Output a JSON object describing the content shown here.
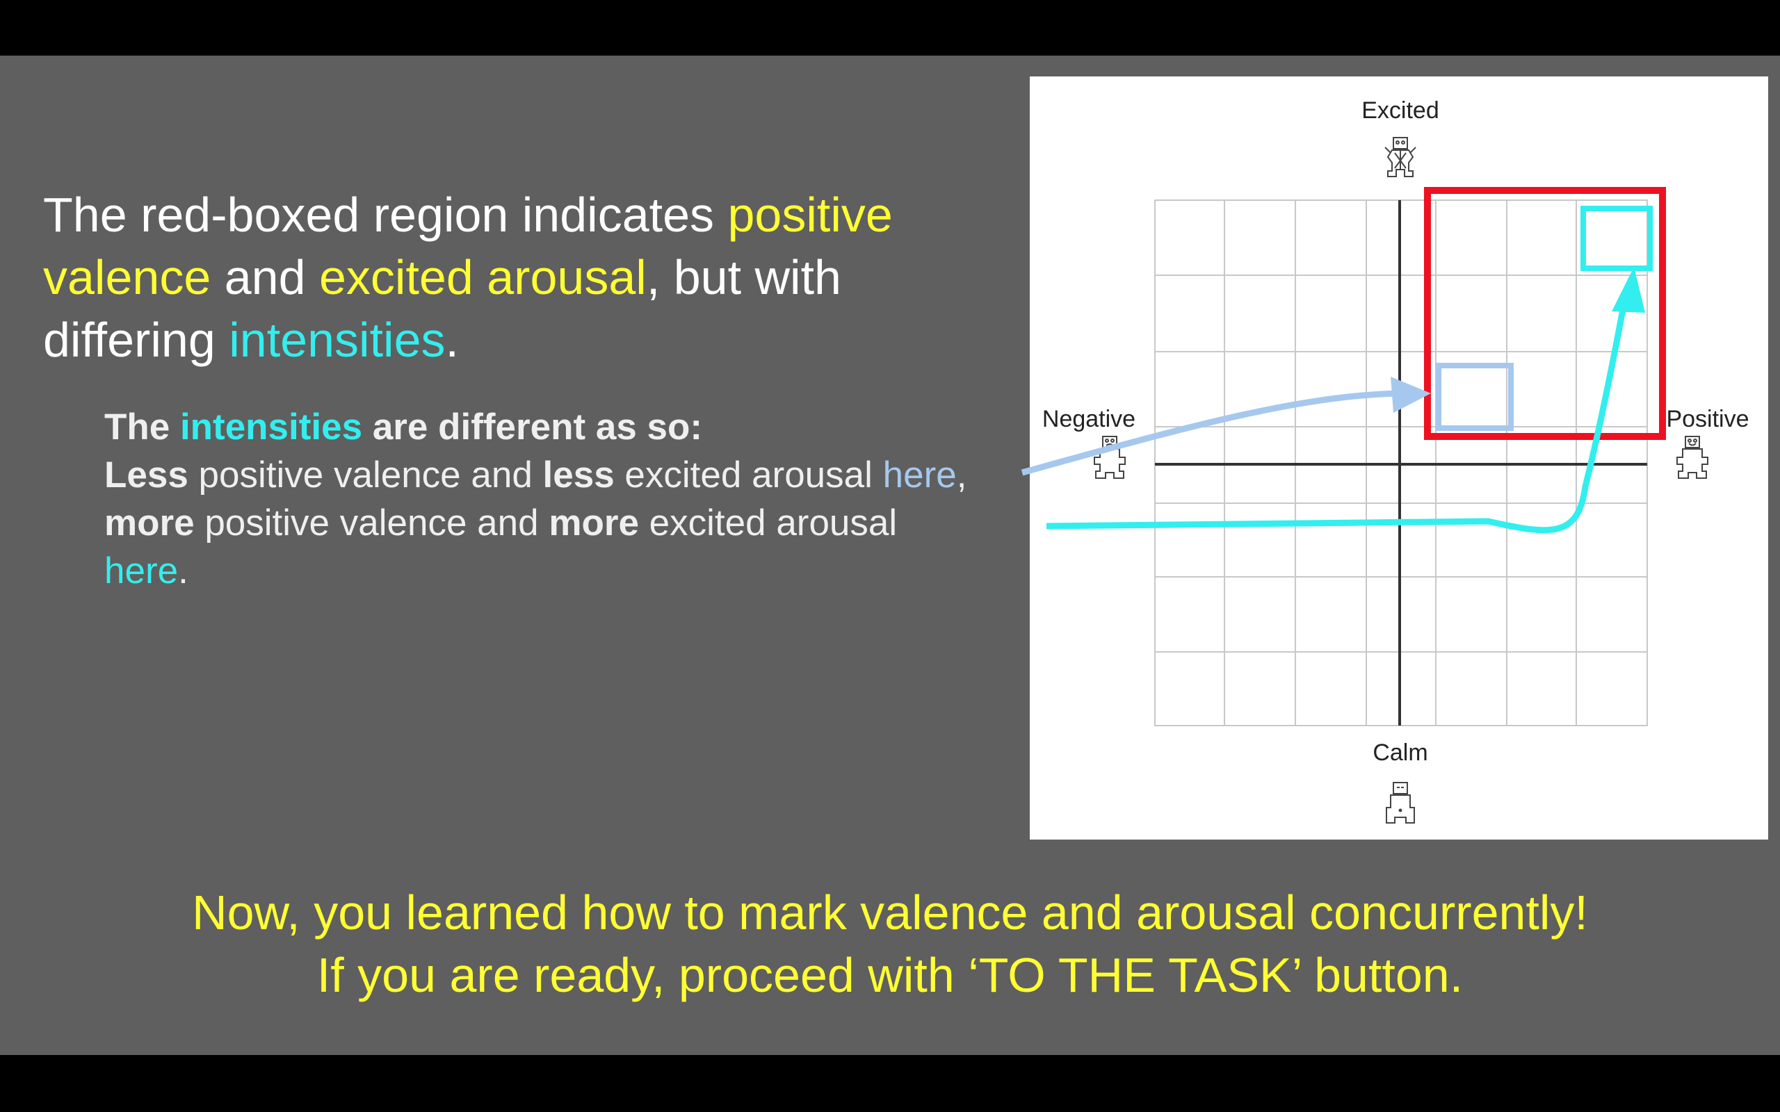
{
  "heading": {
    "part1": "The red-boxed region indicates ",
    "hl1": "positive valence",
    "part2": " and ",
    "hl2": "excited arousal",
    "part3": ", but with differing ",
    "hl3": "intensities",
    "part4": "."
  },
  "details": {
    "lead_b1": "The ",
    "lead_hl": "intensities",
    "lead_b2": " are different as so:",
    "l2_b1": "Less",
    "l2_t1": " positive valence and ",
    "l2_b2": "less",
    "l2_t2": " excited arousal ",
    "l2_link": "here",
    "l2_end": ",",
    "l3_b1": "more",
    "l3_t1": " positive valence and ",
    "l3_b2": "more",
    "l3_t2": " excited arousal",
    "l4_link": "here",
    "l4_end": "."
  },
  "footer": {
    "line1": "Now, you learned how to mark valence and arousal concurrently!",
    "line2": "If you are ready, proceed with ‘TO THE TASK’ button."
  },
  "diagram": {
    "label_top": "Excited",
    "label_bottom": "Calm",
    "label_left": "Negative",
    "label_right": "Positive"
  },
  "colors": {
    "yellow": "#ffff33",
    "cyan": "#33eeee",
    "light_blue": "#a6c8ee",
    "red": "#ee1122",
    "slide_bg": "#5f5f5f"
  },
  "icons": [
    "excited-figure-icon",
    "calm-figure-icon",
    "negative-figure-icon",
    "positive-figure-icon"
  ]
}
